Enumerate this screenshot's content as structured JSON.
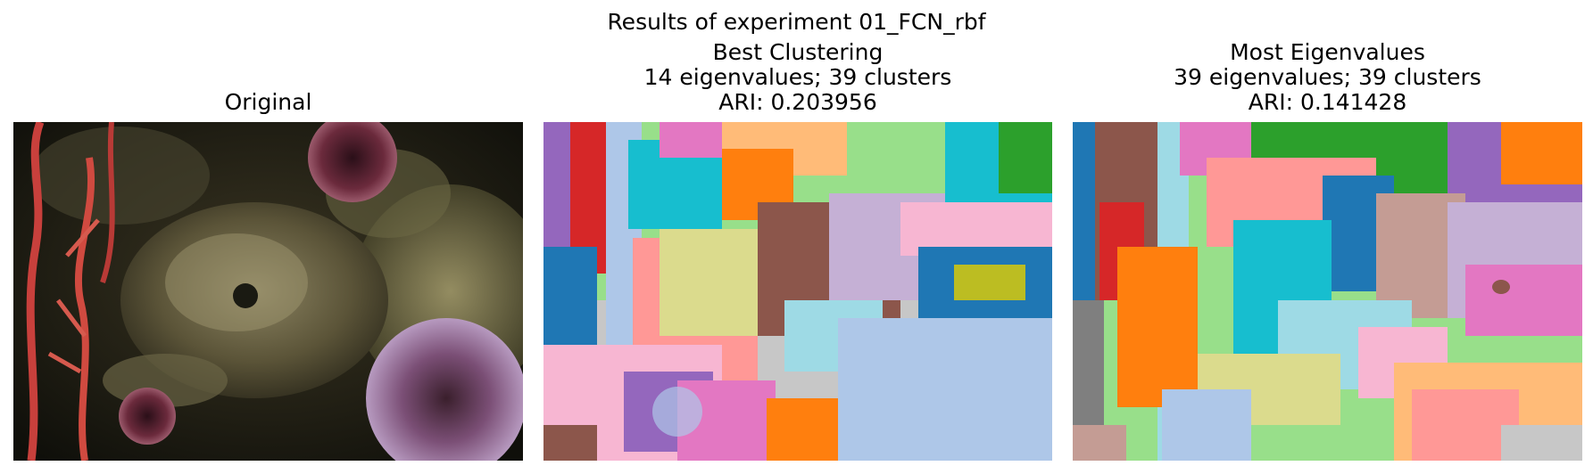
{
  "suptitle": "Results of experiment 01_FCN_rbf",
  "panels": [
    {
      "lines": [
        "Original"
      ]
    },
    {
      "lines": [
        "Best Clustering",
        "14 eigenvalues; 39 clusters",
        "ARI: 0.203956"
      ],
      "eigenvalues": 14,
      "clusters": 39,
      "ari": 0.203956
    },
    {
      "lines": [
        "Most Eigenvalues",
        "39 eigenvalues; 39 clusters",
        "ARI: 0.141428"
      ],
      "eigenvalues": 39,
      "clusters": 39,
      "ari": 0.141428
    }
  ],
  "palette": [
    "#1f77b4",
    "#aec7e8",
    "#ff7f0e",
    "#ffbb78",
    "#2ca02c",
    "#98df8a",
    "#d62728",
    "#ff9896",
    "#9467bd",
    "#c5b0d5",
    "#8c564b",
    "#c49c94",
    "#e377c2",
    "#f7b6d2",
    "#7f7f7f",
    "#c7c7c7",
    "#bcbd22",
    "#dbdb8d",
    "#17becf",
    "#9edae5"
  ]
}
